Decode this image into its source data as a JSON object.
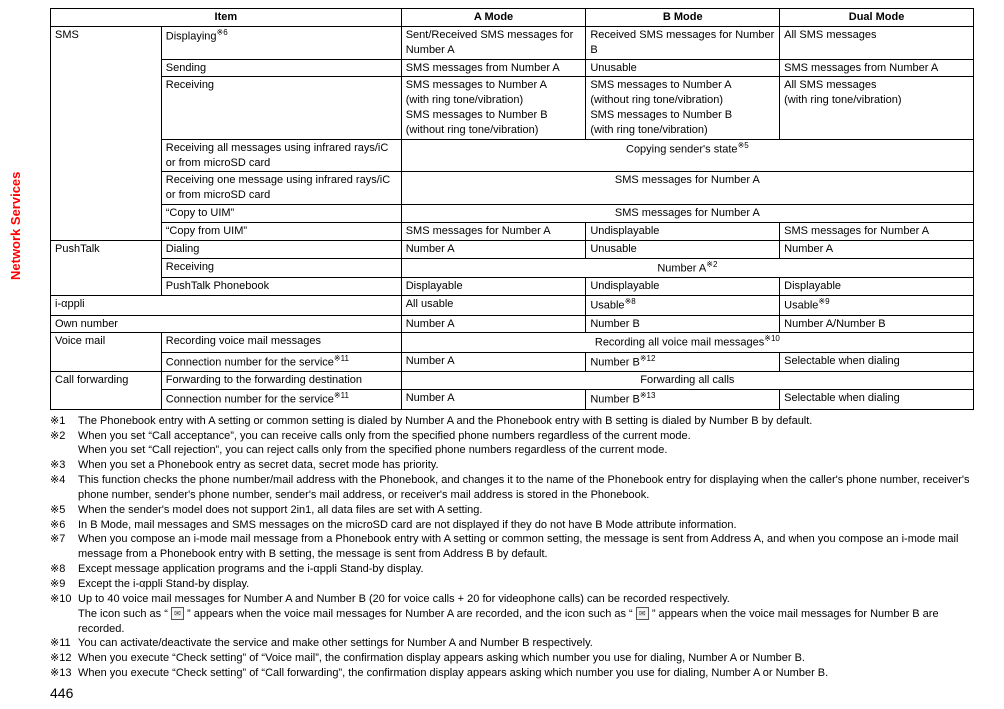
{
  "sidebar": {
    "label": "Network Services"
  },
  "page_number": "446",
  "table": {
    "headers": [
      "Item",
      "A Mode",
      "B Mode",
      "Dual Mode"
    ],
    "col1_w": "12%",
    "col2_w": "26%",
    "col3_w": "20%",
    "col4_w": "21%",
    "col5_w": "21%",
    "rows": {
      "sms": {
        "label": "SMS",
        "displaying": {
          "label": "Displaying",
          "sup": "※6",
          "a": "Sent/Received SMS messages for Number A",
          "b": "Received SMS messages for Number B",
          "d": "All SMS messages"
        },
        "sending": {
          "label": "Sending",
          "a": "SMS messages from Number A",
          "b": "Unusable",
          "d": "SMS messages from Number A"
        },
        "receiving": {
          "label": "Receiving",
          "a": "SMS messages to Number A\n(with ring tone/vibration)\nSMS messages to Number B\n(without ring tone/vibration)",
          "b": "SMS messages to Number A\n(without ring tone/vibration)\nSMS messages to Number B\n(with ring tone/vibration)",
          "d": "All SMS messages\n(with ring tone/vibration)"
        },
        "recv_all_ir": {
          "label": "Receiving all messages using infrared rays/iC or from microSD card",
          "merged": "Copying sender's state",
          "sup": "※5"
        },
        "recv_one_ir": {
          "label": "Receiving one message using infrared rays/iC or from microSD card",
          "merged": "SMS messages for Number A"
        },
        "copy_to": {
          "label": "“Copy to UIM”",
          "merged": "SMS messages for Number A"
        },
        "copy_from": {
          "label": "“Copy from UIM”",
          "a": "SMS messages for Number A",
          "b": "Undisplayable",
          "d": "SMS messages for Number A"
        }
      },
      "pushtalk": {
        "label": "PushTalk",
        "dialing": {
          "label": "Dialing",
          "a": "Number A",
          "b": "Unusable",
          "d": "Number A"
        },
        "receiving": {
          "label": "Receiving",
          "merged": "Number A",
          "sup": "※2"
        },
        "phonebook": {
          "label": "PushTalk Phonebook",
          "a": "Displayable",
          "b": "Undisplayable",
          "d": "Displayable"
        }
      },
      "iappli": {
        "label": "i-αppli",
        "a": "All usable",
        "b": "Usable",
        "b_sup": "※8",
        "d": "Usable",
        "d_sup": "※9"
      },
      "own": {
        "label": "Own number",
        "a": "Number A",
        "b": "Number B",
        "d": "Number A/Number B"
      },
      "voicemail": {
        "label": "Voice mail",
        "recording": {
          "label": "Recording voice mail messages",
          "merged": "Recording all voice mail messages",
          "sup": "※10"
        },
        "conn": {
          "label": "Connection number for the service",
          "label_sup": "※11",
          "a": "Number A",
          "b": "Number B",
          "b_sup": "※12",
          "d": "Selectable when dialing"
        }
      },
      "callfwd": {
        "label": "Call forwarding",
        "fwd": {
          "label": "Forwarding to the forwarding destination",
          "merged": "Forwarding all calls"
        },
        "conn": {
          "label": "Connection number for the service",
          "label_sup": "※11",
          "a": "Number A",
          "b": "Number B",
          "b_sup": "※13",
          "d": "Selectable when dialing"
        }
      }
    }
  },
  "footnotes": [
    {
      "k": "※1",
      "t": "The Phonebook entry with A setting or common setting is dialed by Number A and the Phonebook entry with B setting is dialed by Number B by default."
    },
    {
      "k": "※2",
      "t": "When you set “Call acceptance”, you can receive calls only from the specified phone numbers regardless of the current mode.\nWhen you set “Call rejection”, you can reject calls only from the specified phone numbers regardless of the current mode."
    },
    {
      "k": "※3",
      "t": "When you set a Phonebook entry as secret data, secret mode has priority."
    },
    {
      "k": "※4",
      "t": "This function checks the phone number/mail address with the Phonebook, and changes it to the name of the Phonebook entry for displaying when the caller's phone number, receiver's phone number, sender's phone number, sender's mail address, or receiver's mail address is stored in the Phonebook."
    },
    {
      "k": "※5",
      "t": "When the sender's model does not support 2in1, all data files are set with A setting."
    },
    {
      "k": "※6",
      "t": "In B Mode, mail messages and SMS messages on the microSD card are not displayed if they do not have B Mode attribute information."
    },
    {
      "k": "※7",
      "t": "When you compose an i-mode mail message from a Phonebook entry with A setting or common setting, the message is sent from Address A, and when you compose an i-mode mail message from a Phonebook entry with B setting, the message is sent from Address B by default."
    },
    {
      "k": "※8",
      "t": "Except message application programs and the i-αppli Stand-by display."
    },
    {
      "k": "※9",
      "t": "Except the i-αppli Stand-by display."
    },
    {
      "k": "※10",
      "t": "Up to 40 voice mail messages for Number A and Number B (20 for voice calls + 20 for videophone calls) can be recorded respectively.\nThe icon such as “ [ICON_A] ” appears when the voice mail messages for Number A are recorded, and the icon such as “ [ICON_B] ” appears when the voice mail messages for Number B are recorded."
    },
    {
      "k": "※11",
      "t": "You can activate/deactivate the service and make other settings for Number A and Number B respectively."
    },
    {
      "k": "※12",
      "t": "When you execute “Check setting” of “Voice mail”, the confirmation display appears asking which number you use for dialing, Number A or Number B."
    },
    {
      "k": "※13",
      "t": "When you execute “Check setting” of “Call forwarding”, the confirmation display appears asking which number you use for dialing, Number A or Number B."
    }
  ]
}
